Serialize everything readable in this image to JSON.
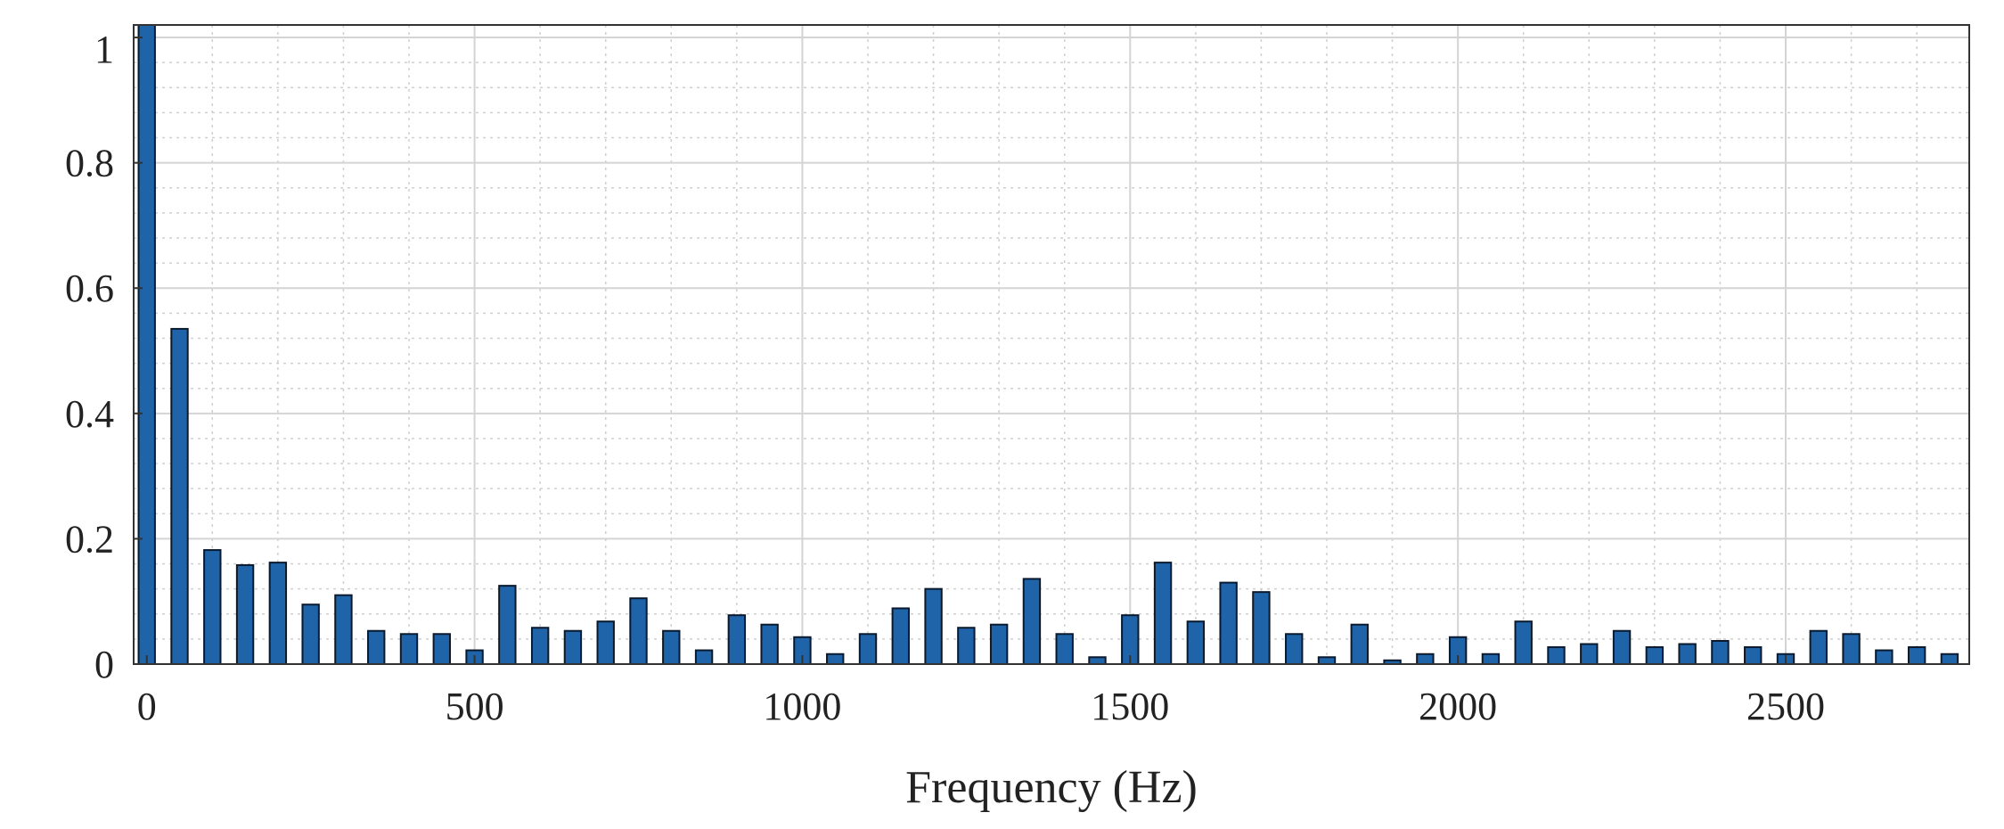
{
  "chart_data": {
    "type": "bar",
    "title": "",
    "xlabel": "Frequency (Hz)",
    "ylabel": "",
    "xlim": [
      -20,
      2780
    ],
    "ylim": [
      0,
      1.02
    ],
    "xticks": [
      0,
      500,
      1000,
      1500,
      2000,
      2500
    ],
    "xtick_labels": [
      "0",
      "500",
      "1000",
      "1500",
      "2000",
      "2500"
    ],
    "yticks": [
      0,
      0.2,
      0.4,
      0.6,
      0.8,
      1
    ],
    "ytick_labels": [
      "0",
      "0.2",
      "0.4",
      "0.6",
      "0.8",
      "1"
    ],
    "grid": true,
    "minor_grid": true,
    "bar_color": "#1f63a8",
    "x": [
      0,
      50,
      100,
      150,
      200,
      250,
      300,
      350,
      400,
      450,
      500,
      550,
      600,
      650,
      700,
      750,
      800,
      850,
      900,
      950,
      1000,
      1050,
      1100,
      1150,
      1200,
      1250,
      1300,
      1350,
      1400,
      1450,
      1500,
      1550,
      1600,
      1650,
      1700,
      1750,
      1800,
      1850,
      1900,
      1950,
      2000,
      2050,
      2100,
      2150,
      2200,
      2250,
      2300,
      2350,
      2400,
      2450,
      2500,
      2550,
      2600,
      2650,
      2700,
      2750
    ],
    "values": [
      1.02,
      0.535,
      0.182,
      0.158,
      0.162,
      0.095,
      0.11,
      0.053,
      0.048,
      0.048,
      0.022,
      0.125,
      0.058,
      0.053,
      0.068,
      0.105,
      0.053,
      0.022,
      0.078,
      0.063,
      0.043,
      0.016,
      0.048,
      0.089,
      0.12,
      0.058,
      0.063,
      0.136,
      0.048,
      0.011,
      0.078,
      0.162,
      0.068,
      0.13,
      0.115,
      0.048,
      0.011,
      0.063,
      0.006,
      0.016,
      0.043,
      0.016,
      0.068,
      0.027,
      0.032,
      0.053,
      0.027,
      0.032,
      0.037,
      0.027,
      0.016,
      0.053,
      0.048,
      0.022,
      0.027,
      0.016
    ]
  }
}
